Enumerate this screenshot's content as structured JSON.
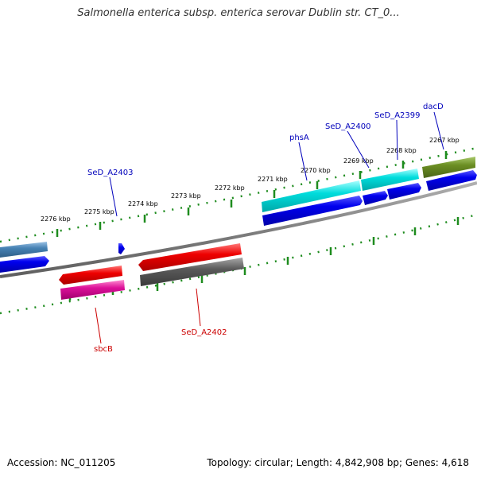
{
  "title": "Salmonella enterica subsp. enterica serovar Dublin str. CT_0...",
  "footer": {
    "accession": "Accession: NC_011205",
    "summary": "Topology: circular; Length: 4,842,908 bp; Genes: 4,618"
  },
  "colors": {
    "backbone": "#7f7f7f",
    "tick": "#1e8c1e",
    "forward_label": "#0000bb",
    "reverse_label": "#cc0000"
  },
  "ticks": [
    {
      "label": "2276 kbp"
    },
    {
      "label": "2275 kbp"
    },
    {
      "label": "2274 kbp"
    },
    {
      "label": "2273 kbp"
    },
    {
      "label": "2272 kbp"
    },
    {
      "label": "2271 kbp"
    },
    {
      "label": "2270 kbp"
    },
    {
      "label": "2269 kbp"
    },
    {
      "label": "2268 kbp"
    },
    {
      "label": "2267 kbp"
    }
  ],
  "genes": {
    "forward": [
      {
        "label": "dacD",
        "color": "#6b8e23"
      },
      {
        "label": "SeD_A2399",
        "color": "#00dcdc"
      },
      {
        "label": "SeD_A2400",
        "color": "#00dcdc"
      },
      {
        "label": "phsA",
        "color": "#00dcdc"
      },
      {
        "label": "SeD_A2403",
        "color": "#0000dd"
      },
      {
        "label": "",
        "color": "#4682b4"
      }
    ],
    "reverse": [
      {
        "label": "SeD_A2402",
        "color": "#ee0000"
      },
      {
        "label": "sbcB",
        "color": "#ee0000"
      }
    ]
  },
  "legend_colors": {
    "cds_forward": "#0000ee",
    "cds_reverse_grey": "#5a5a5a",
    "cds_reverse_pink": "#dd1199"
  }
}
